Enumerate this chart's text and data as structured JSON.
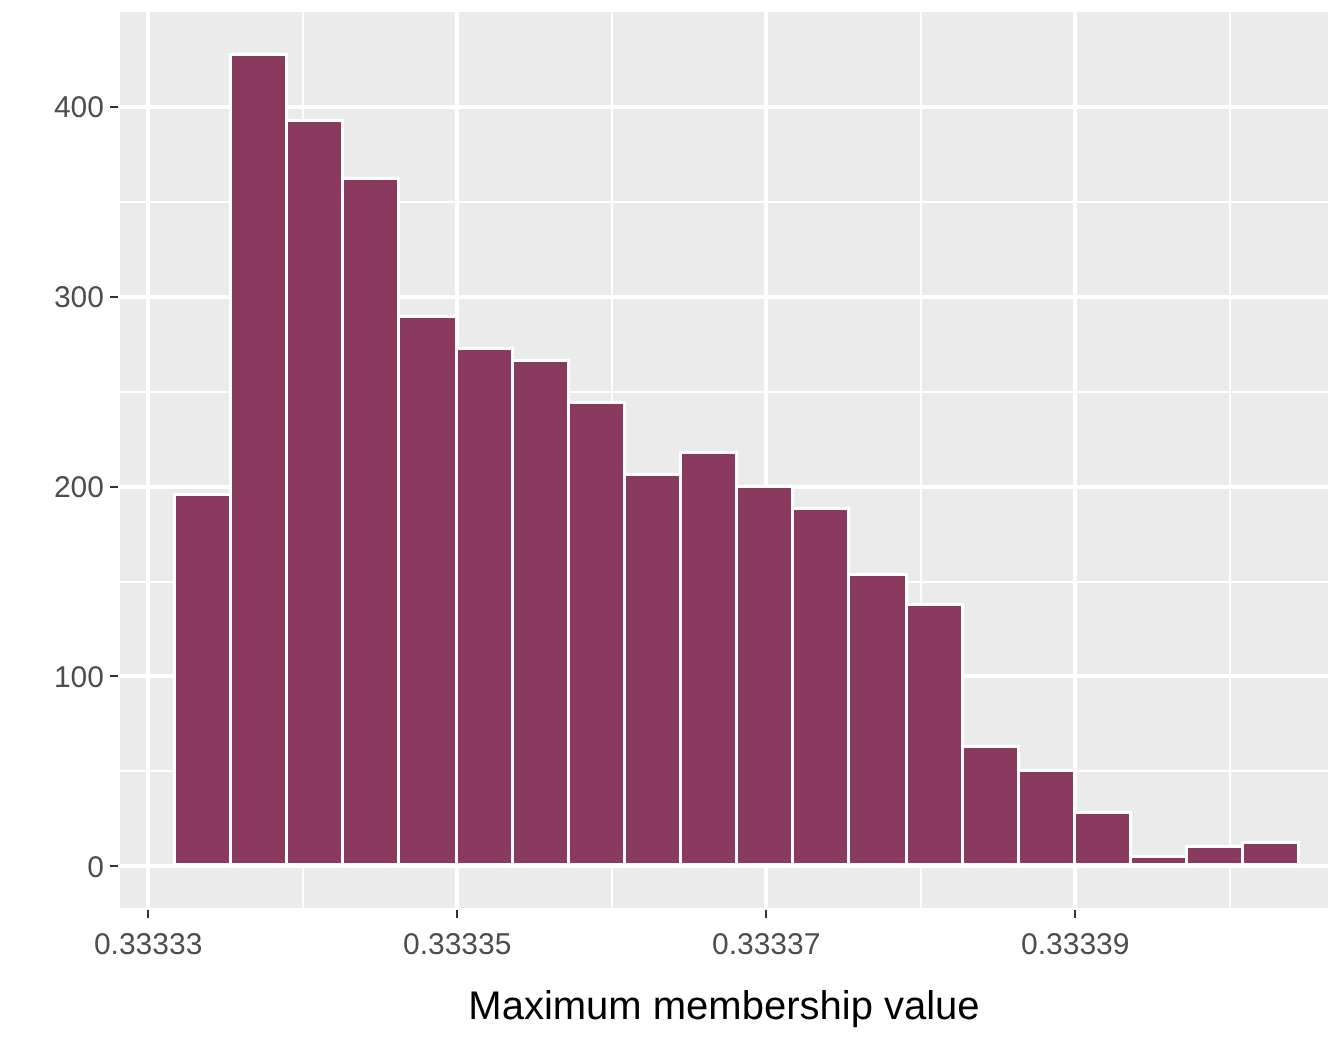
{
  "chart_data": {
    "type": "histogram",
    "xlabel": "Maximum membership value",
    "bins": [
      0.3333318,
      0.33333544,
      0.33333908,
      0.33334272,
      0.33334636,
      0.33335,
      0.33335364,
      0.33335728,
      0.33336092,
      0.33336456,
      0.3333682,
      0.33337184,
      0.33337548,
      0.33337912,
      0.33338276,
      0.3333864,
      0.33339004,
      0.33339368,
      0.33339732,
      0.33340096,
      0.3334046
    ],
    "values": [
      195,
      427,
      392,
      361,
      289,
      272,
      266,
      244,
      206,
      217,
      199,
      188,
      153,
      137,
      62,
      50,
      27,
      4,
      10,
      12
    ],
    "color": "#8a3a5f",
    "xlim": [
      0.33332818,
      0.33340636
    ],
    "xticks": [
      0.33333,
      0.33335,
      0.33337,
      0.33339
    ],
    "ylim": [
      -22,
      450
    ],
    "yticks": [
      0,
      100,
      200,
      300,
      400
    ],
    "grid": true
  }
}
